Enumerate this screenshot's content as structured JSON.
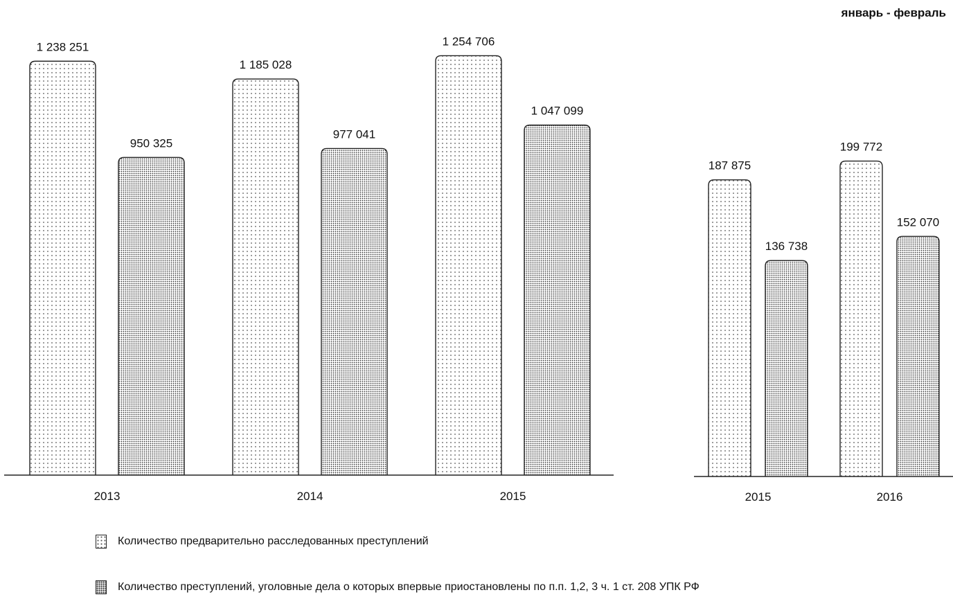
{
  "chart_data": [
    {
      "type": "bar",
      "title": "",
      "categories": [
        "2013",
        "2014",
        "2015"
      ],
      "series": [
        {
          "name": "Количество предварительно расследованных преступлений",
          "values": [
            1238251,
            1185028,
            1254706
          ],
          "labels": [
            "1 238 251",
            "1 185 028",
            "1 254 706"
          ],
          "pattern": "sparse-dots"
        },
        {
          "name": "Количество преступлений, уголовные дела о которых впервые приостановлены по п.п. 1,2, 3 ч. 1 ст. 208 УПК РФ",
          "values": [
            950325,
            977041,
            1047099
          ],
          "labels": [
            "950 325",
            "977 041",
            "1 047 099"
          ],
          "pattern": "dense-dots"
        }
      ],
      "ylim": [
        0,
        1300000
      ],
      "grid": false
    },
    {
      "type": "bar",
      "title": "январь - февраль",
      "categories": [
        "2015",
        "2016"
      ],
      "series": [
        {
          "name": "Количество предварительно расследованных преступлений",
          "values": [
            187875,
            199772
          ],
          "labels": [
            "187 875",
            "199 772"
          ],
          "pattern": "sparse-dots"
        },
        {
          "name": "Количество преступлений, уголовные дела о которых впервые приостановлены по п.п. 1,2, 3 ч. 1 ст. 208 УПК РФ",
          "values": [
            136738,
            152070
          ],
          "labels": [
            "136 738",
            "152 070"
          ],
          "pattern": "dense-dots"
        }
      ],
      "grid": false
    }
  ],
  "legend": {
    "items": [
      {
        "label": "Количество предварительно расследованных преступлений",
        "pattern": "sparse-dots"
      },
      {
        "label": "Количество преступлений, уголовные дела о которых впервые приостановлены по п.п. 1,2, 3 ч. 1 ст. 208 УПК РФ",
        "pattern": "dense-dots"
      }
    ]
  }
}
